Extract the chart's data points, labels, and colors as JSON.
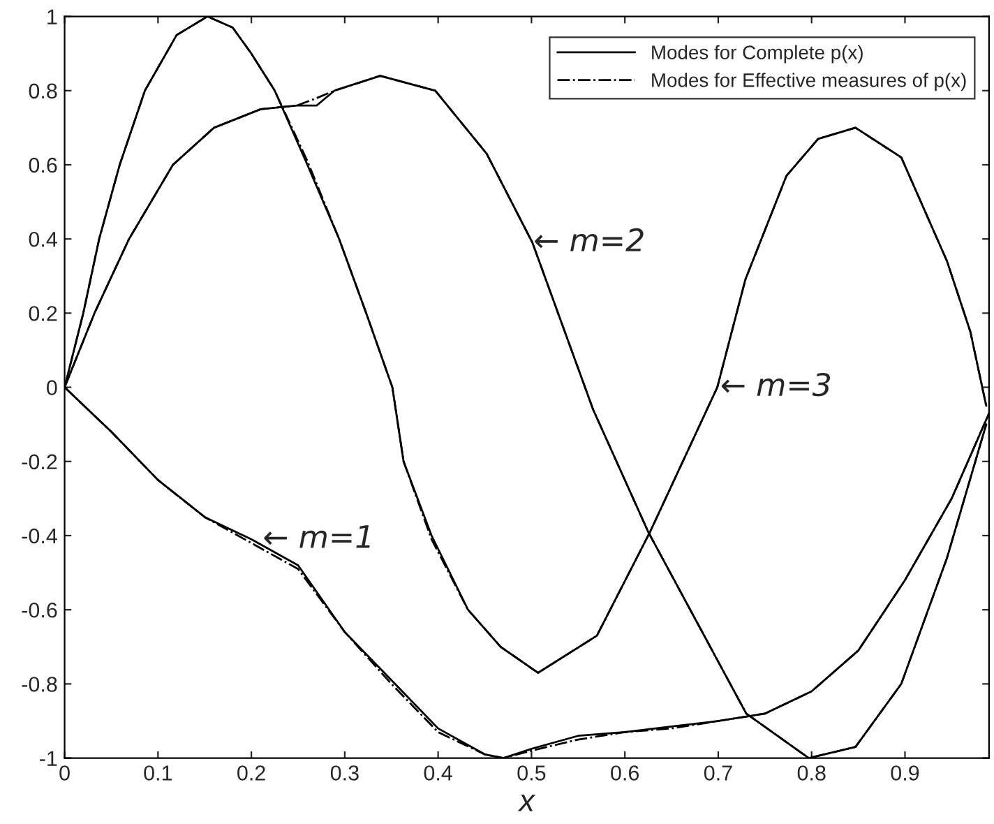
{
  "chart_data": {
    "type": "line",
    "xlabel": "x",
    "xlim": [
      0,
      0.99
    ],
    "ylim": [
      -1,
      1
    ],
    "xticks": [
      0,
      0.1,
      0.2,
      0.3,
      0.4,
      0.5,
      0.6,
      0.7,
      0.8,
      0.9
    ],
    "yticks": [
      -1,
      -0.8,
      -0.6,
      -0.4,
      -0.2,
      0,
      0.2,
      0.4,
      0.6,
      0.8,
      1
    ],
    "grid": false,
    "legend": "top right",
    "marker": "none",
    "series": [
      {
        "name": "Modes for Complete p(x)",
        "color": "#000000",
        "line_style": "solid",
        "x": [
          0,
          0.05,
          0.1,
          0.15,
          0.2,
          0.25,
          0.3,
          0.35,
          0.4,
          0.45,
          0.47,
          0.5,
          0.55,
          0.6,
          0.65,
          0.7,
          0.75,
          0.8,
          0.85,
          0.9,
          0.95,
          0.99
        ],
        "values": [
          0,
          -0.12,
          -0.25,
          -0.35,
          -0.41,
          -0.48,
          -0.66,
          -0.79,
          -0.92,
          -0.99,
          -1.0,
          -0.975,
          -0.94,
          -0.93,
          -0.915,
          -0.9,
          -0.88,
          -0.82,
          -0.71,
          -0.52,
          -0.3,
          -0.07
        ]
      },
      {
        "name": "Modes for Effective measures of p(x)",
        "color": "#000000",
        "line_style": "dashdot",
        "x": [
          0,
          0.05,
          0.1,
          0.15,
          0.2,
          0.25,
          0.3,
          0.35,
          0.4,
          0.45,
          0.47,
          0.5,
          0.55,
          0.6,
          0.65,
          0.7,
          0.75,
          0.8,
          0.85,
          0.9,
          0.95,
          0.99
        ],
        "values": [
          0,
          -0.12,
          -0.25,
          -0.35,
          -0.42,
          -0.49,
          -0.66,
          -0.8,
          -0.93,
          -0.99,
          -1.0,
          -0.98,
          -0.95,
          -0.93,
          -0.92,
          -0.9,
          -0.88,
          -0.82,
          -0.71,
          -0.52,
          -0.3,
          -0.07
        ]
      },
      {
        "color": "#000000",
        "line_style": "solid",
        "x": [
          0,
          0.032,
          0.069,
          0.116,
          0.16,
          0.21,
          0.249,
          0.27,
          0.289,
          0.338,
          0.397,
          0.452,
          0.501,
          0.566,
          0.625,
          0.73,
          0.797,
          0.847,
          0.896,
          0.945,
          0.987
        ],
        "values": [
          0,
          0.2,
          0.4,
          0.6,
          0.7,
          0.75,
          0.76,
          0.76,
          0.8,
          0.84,
          0.8,
          0.63,
          0.39,
          -0.06,
          -0.39,
          -0.88,
          -1.0,
          -0.97,
          -0.8,
          -0.46,
          -0.1
        ]
      },
      {
        "color": "#000000",
        "line_style": "dashdot",
        "x": [
          0,
          0.032,
          0.069,
          0.116,
          0.16,
          0.21,
          0.249,
          0.27,
          0.289,
          0.338,
          0.397,
          0.452,
          0.501,
          0.566,
          0.625,
          0.73,
          0.797,
          0.847,
          0.896,
          0.945,
          0.987
        ],
        "values": [
          0,
          0.2,
          0.4,
          0.6,
          0.7,
          0.75,
          0.76,
          0.78,
          0.8,
          0.84,
          0.8,
          0.63,
          0.39,
          -0.06,
          -0.39,
          -0.88,
          -1.0,
          -0.97,
          -0.8,
          -0.46,
          -0.1
        ]
      },
      {
        "color": "#000000",
        "line_style": "solid",
        "x": [
          0,
          0.02,
          0.037,
          0.059,
          0.086,
          0.12,
          0.153,
          0.18,
          0.2,
          0.225,
          0.26,
          0.294,
          0.323,
          0.351,
          0.363,
          0.393,
          0.432,
          0.467,
          0.507,
          0.57,
          0.627,
          0.699,
          0.729,
          0.773,
          0.807,
          0.847,
          0.896,
          0.945,
          0.97,
          0.987
        ],
        "values": [
          0,
          0.2,
          0.4,
          0.6,
          0.8,
          0.95,
          1.0,
          0.97,
          0.9,
          0.8,
          0.6,
          0.4,
          0.2,
          0,
          -0.2,
          -0.4,
          -0.6,
          -0.7,
          -0.77,
          -0.67,
          -0.39,
          0.0,
          0.29,
          0.57,
          0.67,
          0.7,
          0.62,
          0.34,
          0.15,
          -0.05
        ]
      },
      {
        "color": "#000000",
        "line_style": "dashdot",
        "x": [
          0,
          0.02,
          0.037,
          0.059,
          0.086,
          0.12,
          0.153,
          0.18,
          0.2,
          0.225,
          0.26,
          0.294,
          0.323,
          0.351,
          0.363,
          0.393,
          0.432,
          0.467,
          0.507,
          0.57,
          0.627,
          0.699,
          0.729,
          0.773,
          0.807,
          0.847,
          0.896,
          0.945,
          0.97,
          0.987
        ],
        "values": [
          0,
          0.2,
          0.4,
          0.6,
          0.8,
          0.95,
          1.0,
          0.97,
          0.9,
          0.8,
          0.61,
          0.4,
          0.2,
          0,
          -0.2,
          -0.41,
          -0.6,
          -0.7,
          -0.77,
          -0.67,
          -0.39,
          0.0,
          0.29,
          0.57,
          0.67,
          0.7,
          0.62,
          0.34,
          0.15,
          -0.05
        ]
      }
    ],
    "annotations": [
      {
        "text": "← m=1",
        "x": 0.21,
        "y": -0.41
      },
      {
        "text": "← m=2",
        "x": 0.5,
        "y": 0.39
      },
      {
        "text": "← m=3",
        "x": 0.7,
        "y": 0.0
      }
    ]
  }
}
